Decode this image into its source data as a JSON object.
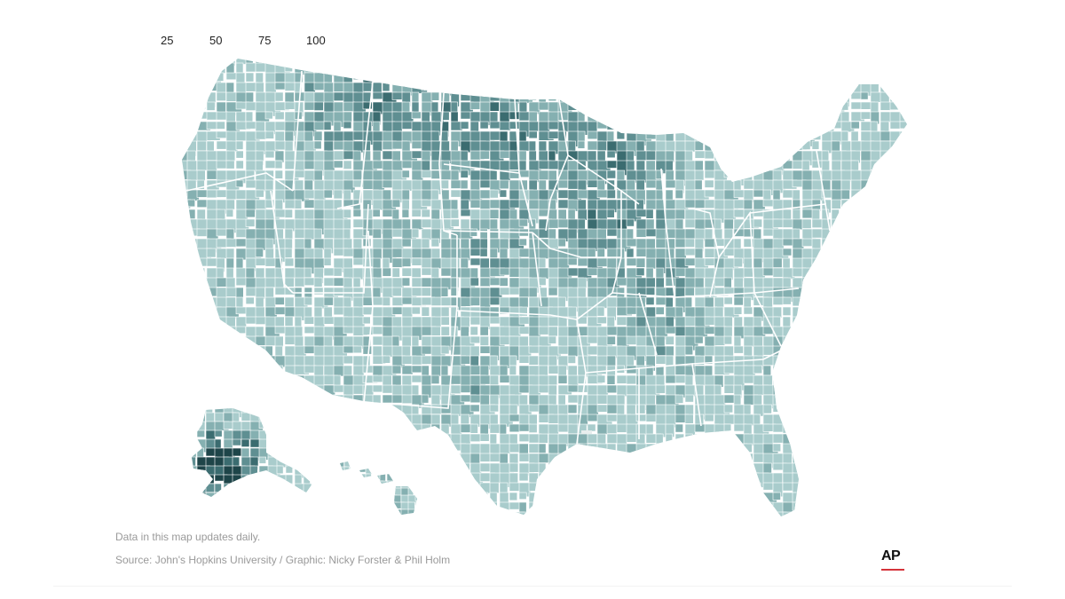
{
  "legend": {
    "ticks": [
      "25",
      "50",
      "75",
      "100"
    ]
  },
  "footer": {
    "note": "Data in this map updates daily.",
    "source": "Source: John's Hopkins University / Graphic: Nicky Forster & Phil Holm"
  },
  "logo": {
    "text": "AP",
    "accent_color": "#d5333b"
  },
  "colors": {
    "level_1": "#a9cccc",
    "level_2": "#85b0b1",
    "level_3": "#5f8f92",
    "level_4": "#3b6c70",
    "level_5": "#1e4549",
    "border": "#ffffff"
  },
  "icons": {
    "map": "us-county-choropleth",
    "logo": "ap-logo"
  }
}
